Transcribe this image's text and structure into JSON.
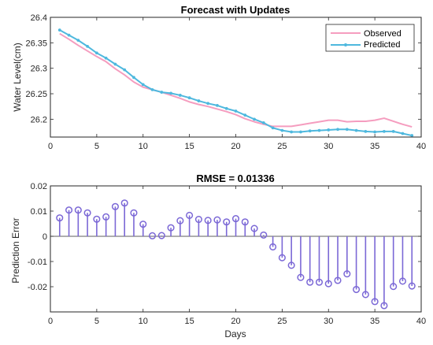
{
  "chart_data": [
    {
      "type": "line",
      "title": "Forecast with Updates",
      "xlabel": "",
      "ylabel": "Water Level(cm)",
      "xlim": [
        0,
        40
      ],
      "ylim": [
        26.165,
        26.4
      ],
      "xticks": [
        "0",
        "5",
        "10",
        "15",
        "20",
        "25",
        "30",
        "35",
        "40"
      ],
      "yticks": [
        "26.2",
        "26.25",
        "26.3",
        "26.35",
        "26.4"
      ],
      "legend_position": "top-right",
      "grid": false,
      "series": [
        {
          "name": "Observed",
          "color": "#f59dbf",
          "marker": "none",
          "x": [
            1,
            2,
            3,
            4,
            5,
            6,
            7,
            8,
            9,
            10,
            11,
            12,
            13,
            14,
            15,
            16,
            17,
            18,
            19,
            20,
            21,
            22,
            23,
            24,
            25,
            26,
            27,
            28,
            29,
            30,
            31,
            32,
            33,
            34,
            35,
            36,
            37,
            38,
            39
          ],
          "values": [
            26.368,
            26.357,
            26.345,
            26.334,
            26.323,
            26.313,
            26.299,
            26.287,
            26.273,
            26.263,
            26.258,
            26.253,
            26.247,
            26.241,
            26.234,
            26.229,
            26.225,
            26.22,
            26.215,
            26.209,
            26.201,
            26.195,
            26.19,
            26.186,
            26.186,
            26.186,
            26.189,
            26.192,
            26.195,
            26.198,
            26.198,
            26.195,
            26.196,
            26.196,
            26.198,
            26.202,
            26.196,
            26.19,
            26.185
          ]
        },
        {
          "name": "Predicted",
          "color": "#4eb8de",
          "marker": "dot",
          "x": [
            1,
            2,
            3,
            4,
            5,
            6,
            7,
            8,
            9,
            10,
            11,
            12,
            13,
            14,
            15,
            16,
            17,
            18,
            19,
            20,
            21,
            22,
            23,
            24,
            25,
            26,
            27,
            28,
            29,
            30,
            31,
            32,
            33,
            34,
            35,
            36,
            37,
            38,
            39
          ],
          "values": [
            26.375,
            26.365,
            26.355,
            26.343,
            26.33,
            26.32,
            26.308,
            26.297,
            26.282,
            26.268,
            26.258,
            26.253,
            26.251,
            26.247,
            26.242,
            26.236,
            26.231,
            26.227,
            26.221,
            26.216,
            26.208,
            26.2,
            26.193,
            26.183,
            26.178,
            26.175,
            26.175,
            26.177,
            26.178,
            26.179,
            26.18,
            26.18,
            26.178,
            26.176,
            26.175,
            26.176,
            26.176,
            26.172,
            26.168
          ]
        }
      ]
    },
    {
      "type": "stem",
      "title": "RMSE = 0.01336",
      "xlabel": "Days",
      "ylabel": "Prediction Error",
      "xlim": [
        0,
        40
      ],
      "ylim": [
        -0.03,
        0.02
      ],
      "xticks": [
        "0",
        "5",
        "10",
        "15",
        "20",
        "25",
        "30",
        "35",
        "40"
      ],
      "yticks": [
        "0.02",
        "0.01",
        "0",
        "-0.01",
        "-0.02"
      ],
      "grid": false,
      "series": [
        {
          "color": "#7b68d6",
          "marker": "circle",
          "x": [
            1,
            2,
            3,
            4,
            5,
            6,
            7,
            8,
            9,
            10,
            11,
            12,
            13,
            14,
            15,
            16,
            17,
            18,
            19,
            20,
            21,
            22,
            23,
            24,
            25,
            26,
            27,
            28,
            29,
            30,
            31,
            32,
            33,
            34,
            35,
            36,
            37,
            38,
            39
          ],
          "values": [
            0.0073,
            0.0104,
            0.0104,
            0.0093,
            0.0068,
            0.0077,
            0.0118,
            0.0132,
            0.0093,
            0.0048,
            0.0002,
            0.0003,
            0.0034,
            0.0062,
            0.0083,
            0.0067,
            0.0063,
            0.0065,
            0.0057,
            0.007,
            0.0057,
            0.0031,
            0.0005,
            -0.0042,
            -0.0085,
            -0.0115,
            -0.0163,
            -0.0182,
            -0.0182,
            -0.0188,
            -0.0175,
            -0.0149,
            -0.0211,
            -0.0231,
            -0.0259,
            -0.0275,
            -0.0199,
            -0.0178,
            -0.0197
          ]
        }
      ]
    }
  ]
}
